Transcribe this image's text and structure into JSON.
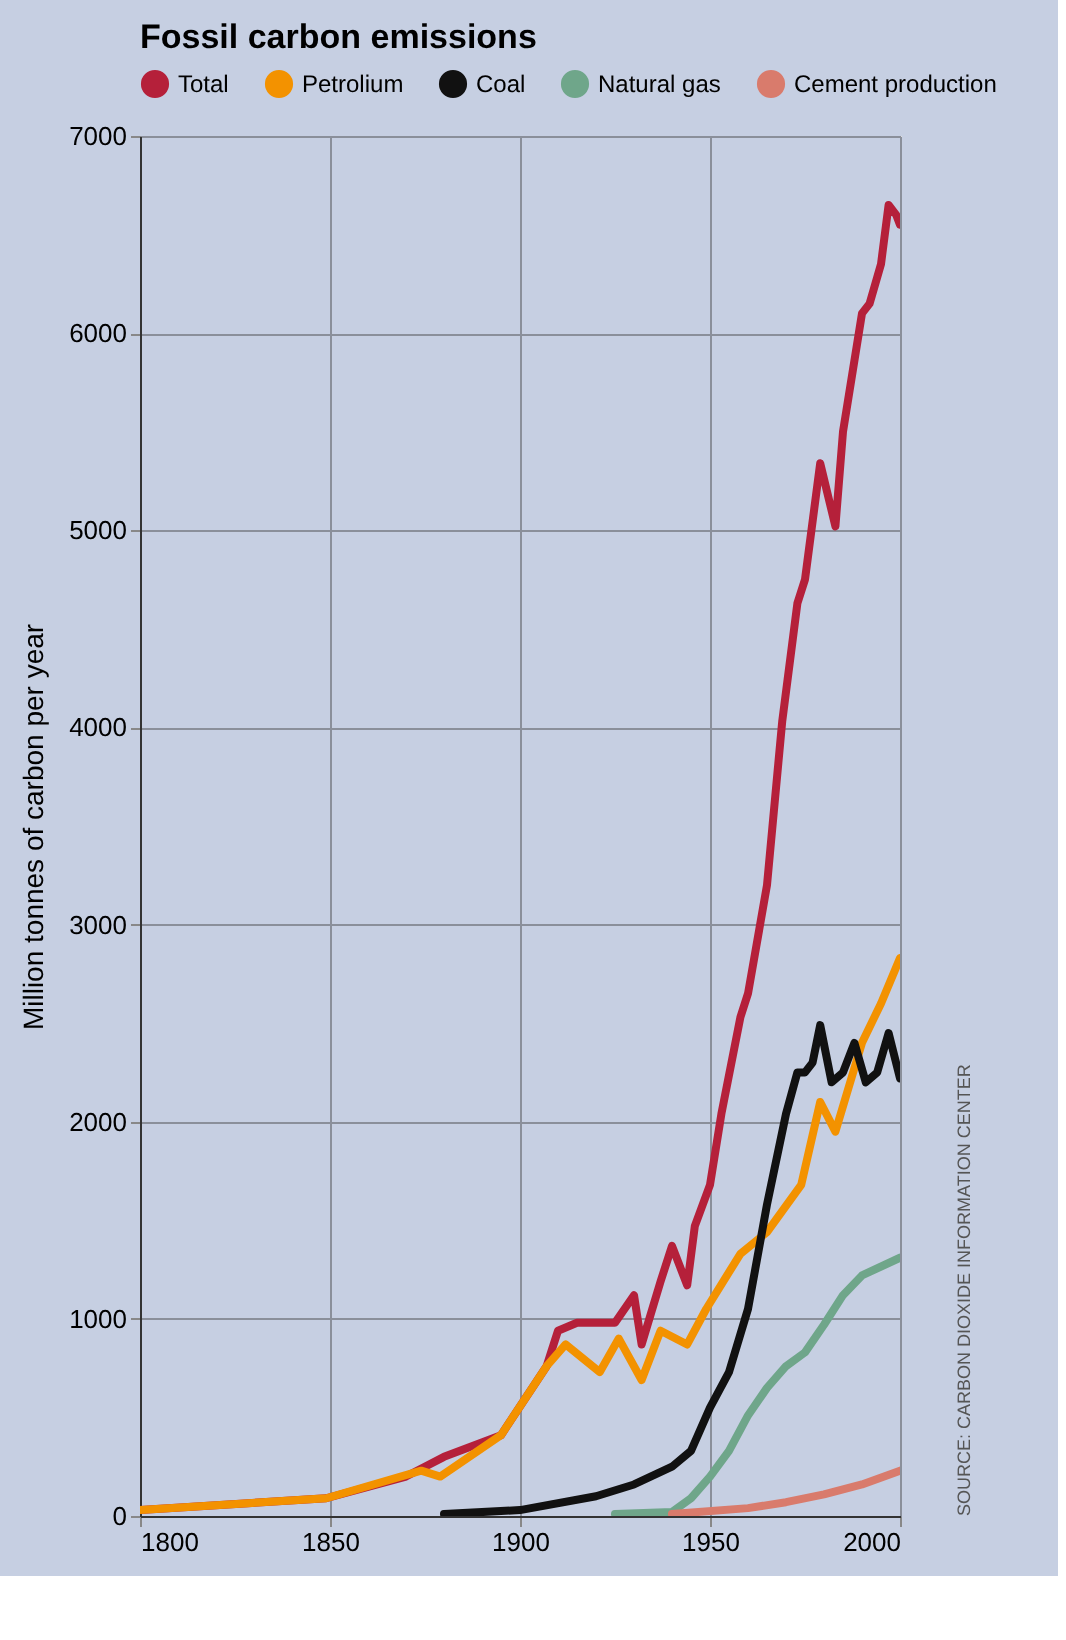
{
  "chart_data": {
    "type": "line",
    "title": "Fossil carbon emissions",
    "ylabel": "Million tonnes of carbon per year",
    "xlim": [
      1800,
      2000
    ],
    "xticks": [
      1800,
      1850,
      1900,
      1950,
      2000
    ],
    "ylim": [
      0,
      7000
    ],
    "yticks": [
      0,
      1000,
      2000,
      3000,
      4000,
      5000,
      6000,
      7000
    ],
    "grid": true,
    "legend": "top",
    "line_style": "solid",
    "marker": "none",
    "annotations": [
      "SOURCE: CARBON DIOXIDE INFORMATION CENTER"
    ],
    "series": [
      {
        "name": "Total",
        "color": "#b5203a",
        "x": [
          1800,
          1849,
          1870,
          1880,
          1895,
          1907,
          1910,
          1915,
          1925,
          1930,
          1932,
          1937,
          1940,
          1944,
          1946,
          1950,
          1953,
          1958,
          1960,
          1965,
          1969,
          1973,
          1975,
          1979,
          1983,
          1985,
          1990,
          1992,
          1995,
          1997,
          1999,
          2000
        ],
        "values": [
          30,
          90,
          200,
          300,
          410,
          760,
          940,
          980,
          980,
          1120,
          870,
          1190,
          1370,
          1170,
          1470,
          1680,
          2040,
          2530,
          2650,
          3200,
          4030,
          4630,
          4750,
          5340,
          5020,
          5500,
          6100,
          6150,
          6350,
          6650,
          6600,
          6550
        ]
      },
      {
        "name": "Petrolium",
        "color": "#f39200",
        "x": [
          1800,
          1849,
          1874,
          1879,
          1895,
          1907,
          1912,
          1921,
          1926,
          1932,
          1937,
          1944,
          1949,
          1958,
          1965,
          1974,
          1979,
          1983,
          1990,
          1995,
          2000
        ],
        "values": [
          30,
          90,
          230,
          200,
          410,
          760,
          870,
          730,
          900,
          690,
          940,
          870,
          1050,
          1330,
          1440,
          1680,
          2100,
          1950,
          2400,
          2600,
          2830
        ]
      },
      {
        "name": "Coal",
        "color": "#111111",
        "x": [
          1880,
          1900,
          1920,
          1930,
          1940,
          1945,
          1950,
          1955,
          1960,
          1965,
          1970,
          1973,
          1975,
          1977,
          1979,
          1982,
          1985,
          1988,
          1991,
          1994,
          1997,
          2000
        ],
        "values": [
          10,
          30,
          100,
          160,
          250,
          330,
          550,
          730,
          1050,
          1580,
          2040,
          2250,
          2250,
          2300,
          2490,
          2200,
          2250,
          2400,
          2200,
          2250,
          2450,
          2220
        ]
      },
      {
        "name": "Natural gas",
        "color": "#6fa68a",
        "x": [
          1925,
          1940,
          1945,
          1950,
          1955,
          1960,
          1965,
          1970,
          1975,
          1980,
          1985,
          1990,
          2000
        ],
        "values": [
          10,
          20,
          90,
          200,
          330,
          510,
          650,
          760,
          830,
          970,
          1120,
          1220,
          1310
        ]
      },
      {
        "name": "Cement production",
        "color": "#d97b6c",
        "x": [
          1940,
          1960,
          1970,
          1980,
          1990,
          2000
        ],
        "values": [
          10,
          40,
          70,
          110,
          160,
          230
        ]
      }
    ]
  }
}
